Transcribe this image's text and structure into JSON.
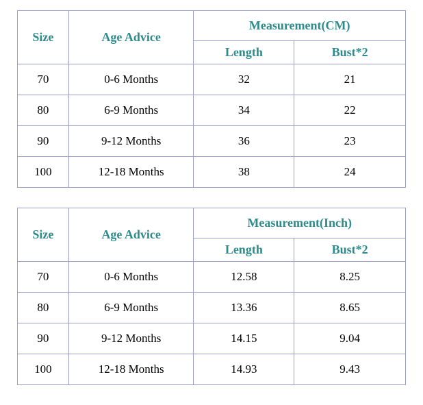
{
  "colors": {
    "header_text": "#2e8b8b",
    "border": "#9c9cc8",
    "body_text": "#000000",
    "background": "#ffffff"
  },
  "chart_data": [
    {
      "type": "table",
      "title": "Measurement(CM)",
      "headers": {
        "size": "Size",
        "age": "Age Advice",
        "measurement": "Measurement(CM)",
        "length": "Length",
        "bust": "Bust*2"
      },
      "columns": [
        "Size",
        "Age Advice",
        "Length",
        "Bust*2"
      ],
      "rows": [
        [
          "70",
          "0-6 Months",
          "32",
          "21"
        ],
        [
          "80",
          "6-9 Months",
          "34",
          "22"
        ],
        [
          "90",
          "9-12 Months",
          "36",
          "23"
        ],
        [
          "100",
          "12-18 Months",
          "38",
          "24"
        ]
      ]
    },
    {
      "type": "table",
      "title": "Measurement(Inch)",
      "headers": {
        "size": "Size",
        "age": "Age Advice",
        "measurement": "Measurement(Inch)",
        "length": "Length",
        "bust": "Bust*2"
      },
      "columns": [
        "Size",
        "Age Advice",
        "Length",
        "Bust*2"
      ],
      "rows": [
        [
          "70",
          "0-6 Months",
          "12.58",
          "8.25"
        ],
        [
          "80",
          "6-9 Months",
          "13.36",
          "8.65"
        ],
        [
          "90",
          "9-12 Months",
          "14.15",
          "9.04"
        ],
        [
          "100",
          "12-18 Months",
          "14.93",
          "9.43"
        ]
      ]
    }
  ]
}
